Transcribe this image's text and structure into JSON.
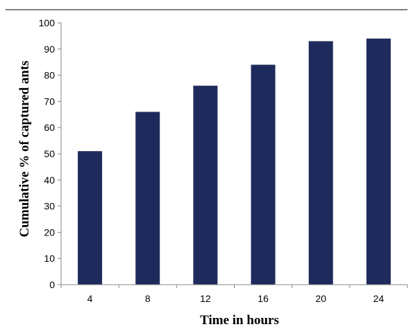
{
  "chart_data": {
    "type": "bar",
    "title": "",
    "xlabel": "Time in hours",
    "ylabel": "Cumulative % of captured ants",
    "categories": [
      "4",
      "8",
      "12",
      "16",
      "20",
      "24"
    ],
    "values": [
      51,
      66,
      76,
      84,
      93,
      94
    ],
    "ylim": [
      0,
      100
    ],
    "yticks": [
      "0",
      "10",
      "20",
      "30",
      "40",
      "50",
      "60",
      "70",
      "80",
      "90",
      "100"
    ],
    "bar_color": "#1f2a5c",
    "grid": false,
    "legend": "none"
  }
}
